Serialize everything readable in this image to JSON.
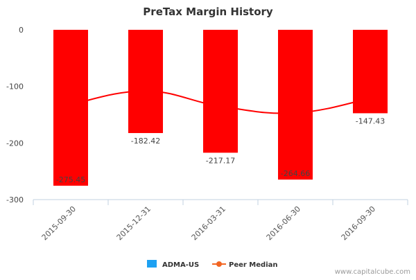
{
  "chart_data": {
    "type": "bar",
    "title": "PreTax Margin History",
    "categories": [
      "2015-09-30",
      "2015-12-31",
      "2016-03-31",
      "2016-06-30",
      "2016-09-30"
    ],
    "series": [
      {
        "name": "ADMA-US",
        "type": "bar",
        "values": [
          -275.45,
          -182.42,
          -217.17,
          -264.66,
          -147.43
        ],
        "color": "#ff0000",
        "legend_color": "#1da1f2"
      },
      {
        "name": "Peer Median",
        "type": "line",
        "values": [
          -132,
          -108,
          -135,
          -147,
          -121
        ],
        "color": "#f26522"
      }
    ],
    "y_ticks": [
      0,
      -100,
      -200,
      -300
    ],
    "ylim": [
      -300,
      0
    ],
    "data_labels": [
      "-275.45",
      "-182.42",
      "-217.17",
      "-264.66",
      "-147.43"
    ],
    "legend_position": "bottom-center",
    "grid": false
  },
  "watermark": "www.capitalcube.com"
}
